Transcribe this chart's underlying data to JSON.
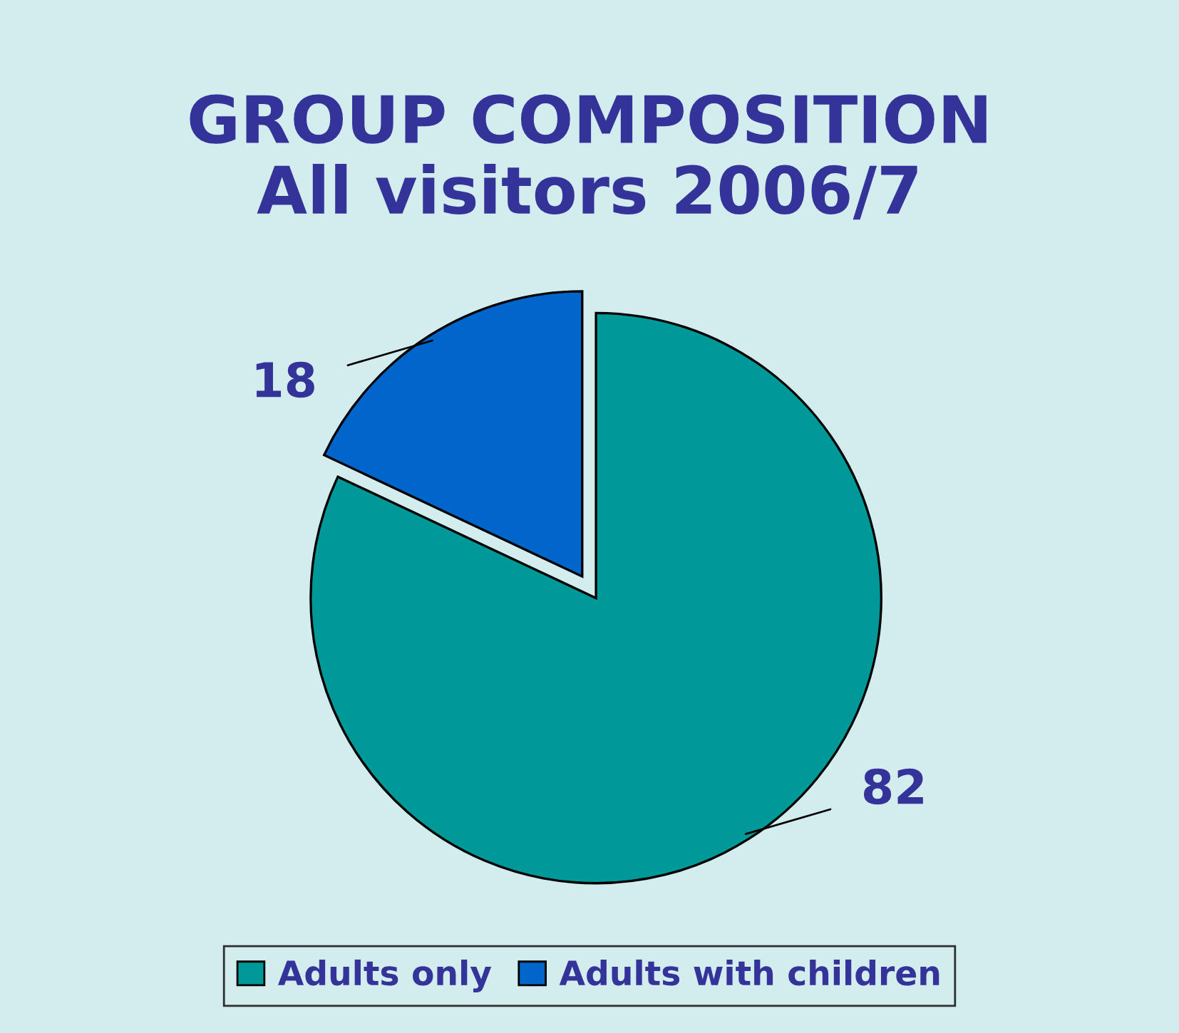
{
  "chart_data": {
    "type": "pie",
    "title": "GROUP COMPOSITION\nAll visitors 2006/7",
    "categories": [
      "Adults only",
      "Adults with children"
    ],
    "values": [
      82,
      18
    ],
    "colors": [
      "#009999",
      "#0066cc"
    ],
    "data_labels": true,
    "legend": "bottom"
  }
}
